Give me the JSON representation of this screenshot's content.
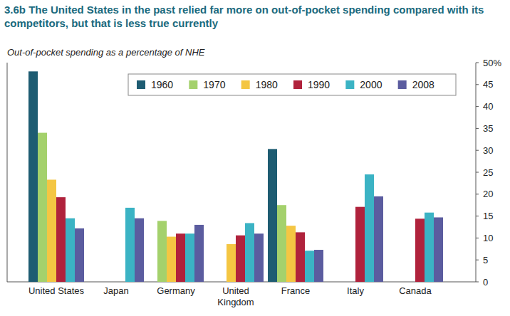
{
  "chart_data": {
    "type": "bar",
    "title": "3.6b The United States in the past relied far more on out-of-pocket spending compared with its competitors, but that is less true currently",
    "y_label": "Out-of-pocket spending as a percentage of NHE",
    "categories": [
      "United States",
      "Japan",
      "Germany",
      "United Kingdom",
      "France",
      "Italy",
      "Canada"
    ],
    "series": [
      {
        "name": "1960",
        "color": "#1e5c72",
        "values": [
          48,
          null,
          null,
          null,
          30.3,
          null,
          null
        ]
      },
      {
        "name": "1970",
        "color": "#a4d16c",
        "values": [
          34,
          null,
          13.9,
          null,
          17.5,
          null,
          null
        ]
      },
      {
        "name": "1980",
        "color": "#f4c643",
        "values": [
          23.3,
          null,
          10.3,
          8.6,
          12.8,
          null,
          null
        ]
      },
      {
        "name": "1990",
        "color": "#b0223c",
        "values": [
          19.3,
          null,
          11,
          10.6,
          11.3,
          17.1,
          14.4
        ]
      },
      {
        "name": "2000",
        "color": "#3bb3c4",
        "values": [
          14.5,
          16.9,
          11,
          13.4,
          7.1,
          24.5,
          15.8
        ]
      },
      {
        "name": "2008",
        "color": "#5b5c9f",
        "values": [
          12.2,
          14.5,
          13,
          11,
          7.3,
          19.5,
          14.7
        ]
      }
    ],
    "ylim": [
      0,
      50
    ],
    "yticks": [
      0,
      5,
      10,
      15,
      20,
      25,
      30,
      35,
      40,
      45,
      {
        "value": 50,
        "label": "50%"
      }
    ],
    "grid": false,
    "legend": "top"
  }
}
